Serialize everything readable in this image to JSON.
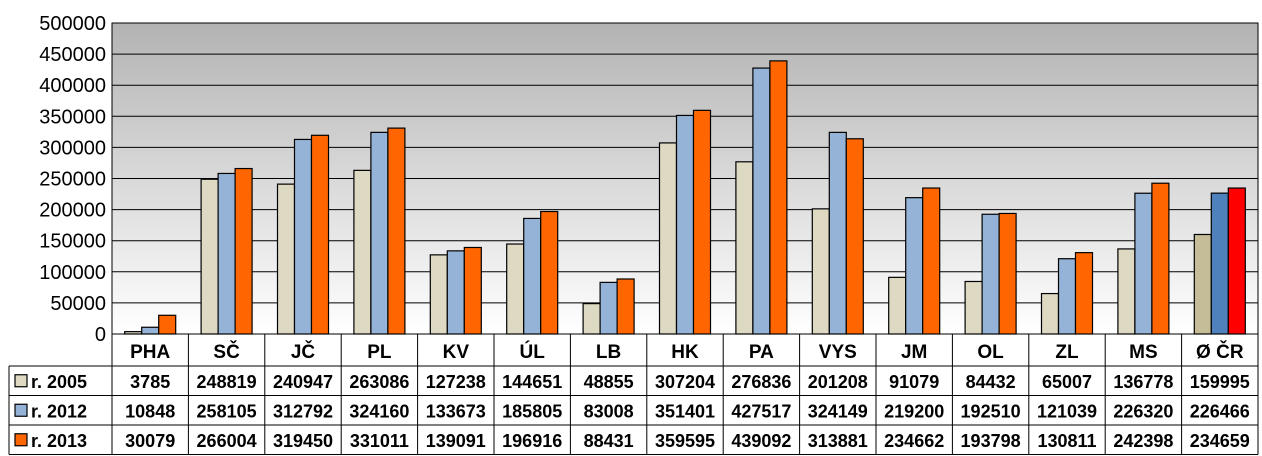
{
  "chart_data": {
    "type": "bar",
    "categories": [
      "PHA",
      "SČ",
      "JČ",
      "PL",
      "KV",
      "ÚL",
      "LB",
      "HK",
      "PA",
      "VYS",
      "JM",
      "OL",
      "ZL",
      "MS",
      "Ø ČR"
    ],
    "series": [
      {
        "name": "r. 2005",
        "color": "#ddd9c3",
        "highlight_color": "#c4bd97",
        "values": [
          3785,
          248819,
          240947,
          263086,
          127238,
          144651,
          48855,
          307204,
          276836,
          201208,
          91079,
          84432,
          65007,
          136778,
          159995
        ]
      },
      {
        "name": "r. 2012",
        "color": "#95b3d7",
        "highlight_color": "#4f81bd",
        "values": [
          10848,
          258105,
          312792,
          324160,
          133673,
          185805,
          83008,
          351401,
          427517,
          324149,
          219200,
          192510,
          121039,
          226320,
          226466
        ]
      },
      {
        "name": "r. 2013",
        "color": "#ff6600",
        "highlight_color": "#ff0000",
        "values": [
          30079,
          266004,
          319450,
          331011,
          139091,
          196916,
          88431,
          359595,
          439092,
          313881,
          234662,
          193798,
          130811,
          242398,
          234659
        ]
      }
    ],
    "ylim": [
      0,
      500000
    ],
    "yticks": [
      0,
      50000,
      100000,
      150000,
      200000,
      250000,
      300000,
      350000,
      400000,
      450000,
      500000
    ],
    "grid": true,
    "legend": "data-table-left",
    "plot_background": "gradient-gray"
  }
}
